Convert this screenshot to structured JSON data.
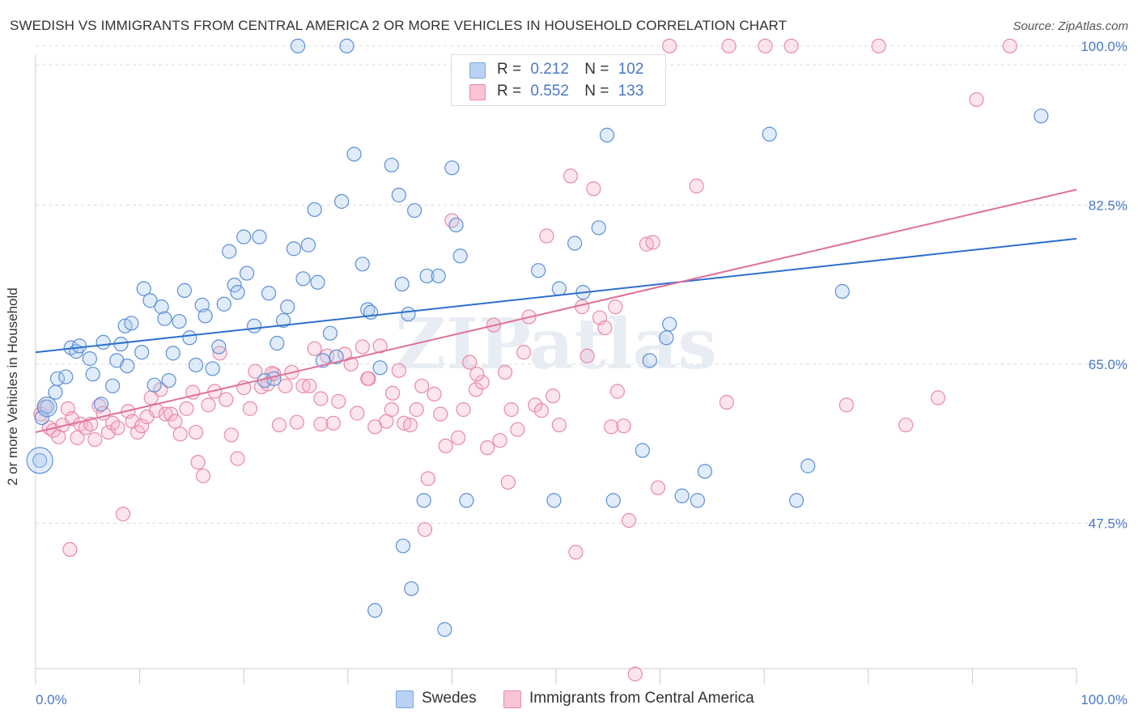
{
  "title": "SWEDISH VS IMMIGRANTS FROM CENTRAL AMERICA 2 OR MORE VEHICLES IN HOUSEHOLD CORRELATION CHART",
  "source": "Source: ZipAtlas.com",
  "watermark": "ZIPatlas",
  "legend_top": {
    "rows": [
      {
        "r_label": "R =",
        "r_value": "0.212",
        "n_label": "N =",
        "n_value": "102"
      },
      {
        "r_label": "R =",
        "r_value": "0.552",
        "n_label": "N =",
        "n_value": "133"
      }
    ]
  },
  "legend_bottom": {
    "items": [
      "Swedes",
      "Immigrants from Central America"
    ]
  },
  "colors": {
    "blue": "#5b8fd6",
    "blue_fill": "rgba(170,200,240,0.35)",
    "pink": "#e88aa8",
    "pink_fill": "rgba(245,180,200,0.35)",
    "blue_line": "#2f6fcc",
    "pink_line": "#e0709a",
    "tick_text": "#4a78c8"
  },
  "chart_data": {
    "type": "scatter",
    "title": "SWEDISH VS IMMIGRANTS FROM CENTRAL AMERICA 2 OR MORE VEHICLES IN HOUSEHOLD CORRELATION CHART",
    "xlabel": "",
    "ylabel": "2 or more Vehicles in Household",
    "x_tick_labels": [
      "0.0%",
      "100.0%"
    ],
    "y_tick_labels": [
      "100.0%",
      "82.5%",
      "65.0%",
      "47.5%"
    ],
    "y_ticks": [
      100.0,
      82.5,
      65.0,
      47.5
    ],
    "xlim": [
      0,
      100
    ],
    "ylim": [
      31.5,
      101.5
    ],
    "grid": "horizontal dashed",
    "legend_position": "top-center",
    "series": [
      {
        "name": "Swedes",
        "R": 0.212,
        "N": 102,
        "trend": {
          "x": [
            0,
            100
          ],
          "y": [
            66.3,
            78.8
          ]
        },
        "points": [
          [
            0.4,
            54.4
          ],
          [
            0.6,
            59.1
          ],
          [
            1.1,
            60.3
          ],
          [
            1.9,
            61.9
          ],
          [
            2.1,
            63.4
          ],
          [
            2.9,
            63.6
          ],
          [
            3.4,
            66.8
          ],
          [
            3.9,
            66.4
          ],
          [
            4.2,
            67.0
          ],
          [
            5.2,
            65.6
          ],
          [
            5.5,
            63.9
          ],
          [
            6.3,
            60.6
          ],
          [
            6.5,
            67.4
          ],
          [
            7.4,
            62.6
          ],
          [
            7.8,
            65.4
          ],
          [
            8.2,
            67.2
          ],
          [
            8.6,
            69.2
          ],
          [
            8.8,
            64.8
          ],
          [
            9.2,
            69.5
          ],
          [
            10.2,
            66.3
          ],
          [
            10.4,
            73.3
          ],
          [
            11.0,
            72.0
          ],
          [
            11.4,
            62.7
          ],
          [
            12.1,
            71.3
          ],
          [
            12.4,
            70.0
          ],
          [
            12.8,
            63.2
          ],
          [
            13.2,
            66.2
          ],
          [
            13.8,
            69.7
          ],
          [
            14.3,
            73.1
          ],
          [
            14.8,
            67.9
          ],
          [
            15.4,
            64.9
          ],
          [
            16.0,
            71.5
          ],
          [
            16.3,
            70.3
          ],
          [
            17.0,
            64.5
          ],
          [
            17.6,
            66.9
          ],
          [
            18.1,
            71.6
          ],
          [
            18.6,
            77.4
          ],
          [
            19.1,
            73.7
          ],
          [
            19.4,
            72.9
          ],
          [
            20.0,
            79.0
          ],
          [
            20.3,
            75.0
          ],
          [
            21.0,
            69.2
          ],
          [
            21.5,
            79.0
          ],
          [
            22.0,
            63.2
          ],
          [
            22.4,
            72.8
          ],
          [
            22.9,
            63.4
          ],
          [
            23.2,
            67.3
          ],
          [
            23.8,
            69.8
          ],
          [
            24.2,
            71.3
          ],
          [
            24.8,
            77.7
          ],
          [
            25.2,
            100.0
          ],
          [
            25.7,
            74.4
          ],
          [
            26.2,
            78.1
          ],
          [
            26.8,
            82.0
          ],
          [
            27.1,
            74.0
          ],
          [
            27.6,
            65.4
          ],
          [
            28.3,
            68.4
          ],
          [
            28.9,
            65.8
          ],
          [
            29.4,
            82.9
          ],
          [
            29.9,
            100.0
          ],
          [
            30.6,
            88.1
          ],
          [
            31.4,
            76.0
          ],
          [
            31.9,
            71.0
          ],
          [
            32.2,
            70.7
          ],
          [
            33.1,
            64.6
          ],
          [
            34.2,
            86.9
          ],
          [
            34.9,
            83.6
          ],
          [
            35.2,
            73.8
          ],
          [
            35.8,
            70.5
          ],
          [
            36.4,
            81.9
          ],
          [
            37.6,
            74.7
          ],
          [
            38.7,
            74.7
          ],
          [
            40.0,
            86.6
          ],
          [
            40.4,
            80.3
          ],
          [
            40.8,
            76.9
          ],
          [
            41.1,
            94.6
          ],
          [
            50.3,
            73.3
          ],
          [
            51.8,
            78.3
          ],
          [
            52.6,
            72.9
          ],
          [
            48.3,
            75.3
          ],
          [
            54.1,
            80.0
          ],
          [
            54.9,
            90.2
          ],
          [
            60.9,
            69.4
          ],
          [
            70.5,
            90.3
          ],
          [
            77.5,
            73.0
          ],
          [
            96.6,
            92.3
          ],
          [
            32.6,
            37.9
          ],
          [
            35.3,
            45.0
          ],
          [
            37.3,
            50.0
          ],
          [
            41.4,
            50.0
          ],
          [
            49.8,
            50.0
          ],
          [
            55.5,
            50.0
          ],
          [
            62.1,
            50.5
          ],
          [
            73.1,
            50.0
          ],
          [
            59.0,
            65.4
          ],
          [
            60.6,
            67.9
          ],
          [
            64.3,
            53.2
          ],
          [
            74.2,
            53.8
          ],
          [
            39.3,
            35.8
          ],
          [
            36.1,
            40.3
          ],
          [
            58.3,
            55.5
          ],
          [
            63.6,
            50.0
          ]
        ]
      },
      {
        "name": "Immigrants from Central America",
        "R": 0.552,
        "N": 133,
        "trend": {
          "x": [
            0,
            100
          ],
          "y": [
            57.5,
            84.2
          ]
        },
        "points": [
          [
            0.5,
            59.5
          ],
          [
            0.9,
            60.3
          ],
          [
            1.3,
            58.0
          ],
          [
            1.7,
            57.7
          ],
          [
            2.2,
            57.0
          ],
          [
            2.6,
            58.3
          ],
          [
            3.1,
            60.1
          ],
          [
            3.5,
            59.0
          ],
          [
            4.0,
            56.9
          ],
          [
            4.3,
            58.4
          ],
          [
            4.8,
            58.0
          ],
          [
            5.3,
            58.4
          ],
          [
            5.7,
            56.7
          ],
          [
            6.1,
            60.4
          ],
          [
            6.5,
            59.6
          ],
          [
            7.0,
            57.5
          ],
          [
            7.4,
            58.5
          ],
          [
            7.9,
            58.0
          ],
          [
            8.4,
            48.5
          ],
          [
            8.9,
            59.8
          ],
          [
            9.3,
            58.7
          ],
          [
            9.8,
            57.5
          ],
          [
            10.2,
            58.2
          ],
          [
            10.7,
            59.2
          ],
          [
            11.1,
            61.3
          ],
          [
            11.6,
            59.9
          ],
          [
            12.0,
            62.2
          ],
          [
            12.5,
            59.5
          ],
          [
            13.0,
            59.5
          ],
          [
            13.4,
            58.7
          ],
          [
            13.9,
            57.3
          ],
          [
            14.5,
            60.1
          ],
          [
            15.1,
            61.9
          ],
          [
            15.6,
            54.2
          ],
          [
            16.1,
            52.7
          ],
          [
            16.6,
            60.5
          ],
          [
            17.2,
            62.0
          ],
          [
            17.7,
            66.2
          ],
          [
            18.3,
            61.1
          ],
          [
            18.8,
            57.2
          ],
          [
            19.4,
            54.6
          ],
          [
            20.0,
            62.4
          ],
          [
            20.6,
            60.1
          ],
          [
            21.1,
            64.2
          ],
          [
            21.7,
            62.5
          ],
          [
            22.3,
            62.8
          ],
          [
            22.9,
            63.9
          ],
          [
            23.4,
            58.3
          ],
          [
            24.0,
            62.6
          ],
          [
            24.6,
            64.1
          ],
          [
            25.1,
            58.6
          ],
          [
            25.7,
            62.6
          ],
          [
            26.3,
            62.6
          ],
          [
            26.8,
            66.7
          ],
          [
            27.4,
            58.4
          ],
          [
            28.0,
            65.9
          ],
          [
            28.6,
            58.5
          ],
          [
            29.1,
            60.9
          ],
          [
            29.7,
            66.1
          ],
          [
            30.3,
            65.0
          ],
          [
            30.9,
            59.6
          ],
          [
            31.4,
            66.9
          ],
          [
            32.0,
            63.4
          ],
          [
            32.6,
            58.1
          ],
          [
            33.1,
            67.0
          ],
          [
            33.7,
            58.7
          ],
          [
            34.3,
            61.8
          ],
          [
            34.9,
            64.3
          ],
          [
            35.4,
            58.5
          ],
          [
            36.0,
            58.3
          ],
          [
            36.6,
            60.0
          ],
          [
            37.1,
            62.6
          ],
          [
            37.7,
            52.4
          ],
          [
            38.3,
            61.7
          ],
          [
            38.9,
            59.5
          ],
          [
            39.4,
            56.0
          ],
          [
            40.0,
            80.8
          ],
          [
            40.6,
            56.9
          ],
          [
            41.1,
            60.0
          ],
          [
            41.7,
            65.2
          ],
          [
            42.3,
            62.2
          ],
          [
            42.9,
            63.0
          ],
          [
            43.4,
            55.8
          ],
          [
            44.0,
            69.3
          ],
          [
            44.6,
            56.6
          ],
          [
            45.1,
            64.1
          ],
          [
            45.7,
            60.0
          ],
          [
            46.3,
            57.8
          ],
          [
            46.9,
            66.3
          ],
          [
            47.4,
            70.2
          ],
          [
            48.0,
            60.5
          ],
          [
            48.6,
            59.9
          ],
          [
            49.1,
            79.1
          ],
          [
            49.7,
            61.5
          ],
          [
            50.3,
            58.3
          ],
          [
            51.4,
            85.7
          ],
          [
            51.9,
            44.3
          ],
          [
            52.5,
            71.3
          ],
          [
            53.0,
            65.9
          ],
          [
            53.6,
            84.3
          ],
          [
            54.2,
            70.1
          ],
          [
            54.7,
            69.0
          ],
          [
            55.3,
            58.1
          ],
          [
            55.9,
            62.0
          ],
          [
            56.5,
            58.2
          ],
          [
            57.0,
            47.8
          ],
          [
            57.6,
            30.9
          ],
          [
            58.1,
            97.4
          ],
          [
            58.7,
            78.2
          ],
          [
            59.3,
            78.4
          ],
          [
            59.8,
            51.4
          ],
          [
            63.5,
            84.6
          ],
          [
            66.6,
            100.0
          ],
          [
            72.6,
            100.0
          ],
          [
            81.0,
            100.0
          ],
          [
            83.6,
            58.3
          ],
          [
            90.4,
            94.1
          ],
          [
            93.6,
            100.0
          ],
          [
            15.4,
            57.5
          ],
          [
            27.4,
            61.2
          ],
          [
            34.2,
            60.0
          ],
          [
            37.4,
            46.8
          ],
          [
            42.4,
            63.9
          ],
          [
            60.9,
            100.0
          ],
          [
            66.4,
            60.8
          ],
          [
            70.1,
            100.0
          ],
          [
            77.9,
            60.5
          ],
          [
            86.7,
            61.3
          ],
          [
            3.3,
            44.6
          ],
          [
            22.7,
            64.0
          ],
          [
            31.9,
            63.4
          ],
          [
            45.4,
            52.0
          ],
          [
            55.7,
            71.3
          ]
        ]
      }
    ]
  }
}
